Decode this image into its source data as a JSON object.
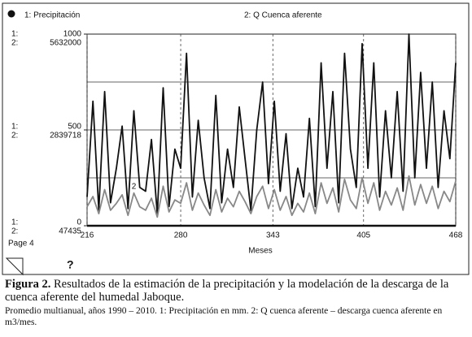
{
  "chart_data": {
    "type": "line",
    "legend": [
      "1: Precipitación",
      "2: Q Cuenca aferente"
    ],
    "axis_prefixes": [
      "1:",
      "2:"
    ],
    "xlabel": "Meses",
    "x": [
      216,
      220,
      224,
      228,
      232,
      236,
      240,
      244,
      248,
      252,
      256,
      260,
      264,
      268,
      272,
      276,
      280,
      284,
      288,
      292,
      296,
      300,
      304,
      308,
      312,
      316,
      320,
      324,
      328,
      332,
      336,
      340,
      344,
      348,
      352,
      356,
      360,
      364,
      368,
      372,
      376,
      380,
      384,
      388,
      392,
      396,
      400,
      404,
      408,
      412,
      416,
      420,
      424,
      428,
      432,
      436,
      440,
      444,
      448,
      452,
      456,
      460,
      464,
      468
    ],
    "xlim": [
      216,
      468
    ],
    "xticks": [
      216,
      280,
      343,
      405,
      468
    ],
    "ylim": [
      0,
      1000
    ],
    "yticks": [
      0,
      500,
      1000
    ],
    "ygrid": [
      250,
      500,
      750
    ],
    "y2lim": [
      47435,
      5632000
    ],
    "y2ticks": [
      47435,
      2839718,
      5632000
    ],
    "series": [
      {
        "name": "1: Precipitación",
        "color": "#111111",
        "values": [
          150,
          650,
          80,
          700,
          120,
          300,
          520,
          90,
          600,
          200,
          180,
          450,
          60,
          720,
          100,
          400,
          300,
          900,
          150,
          550,
          250,
          90,
          680,
          120,
          400,
          200,
          620,
          350,
          80,
          500,
          750,
          220,
          650,
          180,
          480,
          90,
          300,
          150,
          560,
          100,
          850,
          300,
          700,
          120,
          900,
          400,
          200,
          950,
          300,
          850,
          150,
          600,
          250,
          700,
          180,
          1000,
          250,
          800,
          300,
          750,
          200,
          600,
          350,
          850
        ]
      },
      {
        "name": "2: Q Cuenca aferente",
        "color": "#888888",
        "axis": "y2",
        "curve_marker": "2",
        "values": [
          600000,
          900000,
          400000,
          1100000,
          500000,
          700000,
          950000,
          350000,
          1000000,
          600000,
          500000,
          850000,
          300000,
          1200000,
          450000,
          800000,
          700000,
          1300000,
          500000,
          1000000,
          650000,
          350000,
          1100000,
          450000,
          850000,
          600000,
          1050000,
          750000,
          400000,
          900000,
          1200000,
          550000,
          1100000,
          500000,
          900000,
          350000,
          700000,
          450000,
          1000000,
          400000,
          1300000,
          700000,
          1150000,
          450000,
          1400000,
          800000,
          550000,
          1450000,
          700000,
          1300000,
          500000,
          1050000,
          650000,
          1150000,
          500000,
          1500000,
          650000,
          1250000,
          700000,
          1200000,
          550000,
          1050000,
          750000,
          1350000
        ]
      }
    ]
  },
  "footer": {
    "page": "Page 4",
    "help": "?"
  },
  "caption": {
    "label": "Figura 2.",
    "text": " Resultados de la estimación de la precipitación y la modelación de la descarga de la cuenca aferente del humedal Jaboque.",
    "note": "Promedio multianual, años 1990 – 2010. 1: Precipitación en mm. 2: Q cuenca aferente – descarga cuenca aferente en m3/mes."
  }
}
